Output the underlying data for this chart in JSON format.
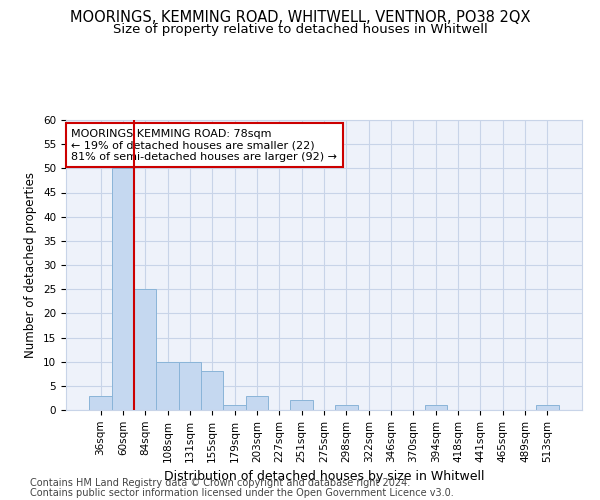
{
  "title": "MOORINGS, KEMMING ROAD, WHITWELL, VENTNOR, PO38 2QX",
  "subtitle": "Size of property relative to detached houses in Whitwell",
  "xlabel": "Distribution of detached houses by size in Whitwell",
  "ylabel": "Number of detached properties",
  "footer_line1": "Contains HM Land Registry data © Crown copyright and database right 2024.",
  "footer_line2": "Contains public sector information licensed under the Open Government Licence v3.0.",
  "bar_labels": [
    "36sqm",
    "60sqm",
    "84sqm",
    "108sqm",
    "131sqm",
    "155sqm",
    "179sqm",
    "203sqm",
    "227sqm",
    "251sqm",
    "275sqm",
    "298sqm",
    "322sqm",
    "346sqm",
    "370sqm",
    "394sqm",
    "418sqm",
    "441sqm",
    "465sqm",
    "489sqm",
    "513sqm"
  ],
  "bar_values": [
    3,
    50,
    25,
    10,
    10,
    8,
    1,
    3,
    0,
    2,
    0,
    1,
    0,
    0,
    0,
    1,
    0,
    0,
    0,
    0,
    1
  ],
  "bar_color": "#c5d8f0",
  "bar_edge_color": "#8ab4d8",
  "ylim": [
    0,
    60
  ],
  "yticks": [
    0,
    5,
    10,
    15,
    20,
    25,
    30,
    35,
    40,
    45,
    50,
    55,
    60
  ],
  "red_line_index": 2,
  "annotation_line1": "MOORINGS KEMMING ROAD: 78sqm",
  "annotation_line2": "← 19% of detached houses are smaller (22)",
  "annotation_line3": "81% of semi-detached houses are larger (92) →",
  "annotation_box_color": "#ffffff",
  "annotation_box_edge": "#cc0000",
  "red_line_color": "#cc0000",
  "background_color": "#eef2fa",
  "grid_color": "#c8d4e8",
  "title_fontsize": 10.5,
  "subtitle_fontsize": 9.5,
  "tick_fontsize": 7.5,
  "ylabel_fontsize": 8.5,
  "xlabel_fontsize": 9,
  "footer_fontsize": 7,
  "annotation_fontsize": 8
}
